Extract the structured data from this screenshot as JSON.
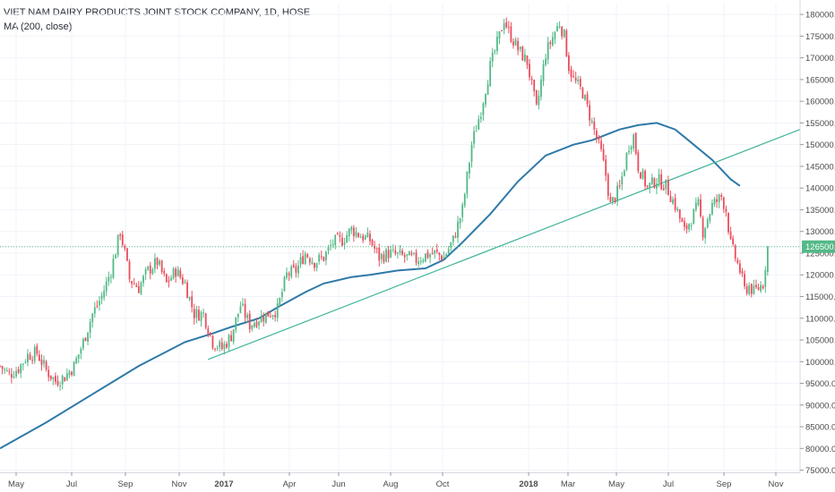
{
  "header": {
    "title": "VIET NAM DAIRY PRODUCTS JOINT STOCK COMPANY, 1D, HOSE",
    "indicator": "MA (200, close)"
  },
  "colors": {
    "up": "#53b987",
    "down": "#eb4d5c",
    "ma": "#2e79a8",
    "trendline": "#3fb39a",
    "grid": "#f0f3fa",
    "axis_text": "#4a4a4a",
    "price_label_bg": "#53b987"
  },
  "chart_data": {
    "type": "candlestick",
    "title": "VIET NAM DAIRY PRODUCTS JOINT STOCK COMPANY, 1D, HOSE",
    "x_ticks": [
      "May",
      "Jul",
      "Sep",
      "Nov",
      "2017",
      "Apr",
      "Jun",
      "Aug",
      "Oct",
      "2018",
      "Mar",
      "May",
      "Jul",
      "Sep",
      "Nov"
    ],
    "y_ticks": [
      "180000.0",
      "175000.0",
      "170000.0",
      "165000.0",
      "160000.0",
      "155000.0",
      "150000.0",
      "145000.0",
      "140000.0",
      "135000.0",
      "130000.0",
      "125000.0",
      "120000.0",
      "115000.0",
      "110000.0",
      "105000.0",
      "100000.0",
      "95000.0",
      "90000.0",
      "85000.0",
      "80000.0",
      "75000.0"
    ],
    "ylim": [
      74500,
      182500
    ],
    "xlim": [
      0,
      173
    ],
    "last_price": 126500,
    "last_price_label": "126500.0",
    "price_points": [
      [
        0,
        99000
      ],
      [
        2,
        97000
      ],
      [
        4,
        98500
      ],
      [
        6,
        101500
      ],
      [
        8,
        102000
      ],
      [
        10,
        98000
      ],
      [
        12,
        95500
      ],
      [
        14,
        96500
      ],
      [
        16,
        99000
      ],
      [
        18,
        104500
      ],
      [
        20,
        111000
      ],
      [
        22,
        115000
      ],
      [
        24,
        121000
      ],
      [
        26,
        130000
      ],
      [
        27,
        125000
      ],
      [
        28,
        119000
      ],
      [
        30,
        117000
      ],
      [
        32,
        121000
      ],
      [
        34,
        123000
      ],
      [
        36,
        118000
      ],
      [
        38,
        121000
      ],
      [
        40,
        118000
      ],
      [
        42,
        111000
      ],
      [
        44,
        111000
      ],
      [
        46,
        104500
      ],
      [
        48,
        103000
      ],
      [
        50,
        106000
      ],
      [
        52,
        113000
      ],
      [
        54,
        108500
      ],
      [
        56,
        110000
      ],
      [
        58,
        111000
      ],
      [
        60,
        112000
      ],
      [
        62,
        120000
      ],
      [
        64,
        121000
      ],
      [
        66,
        125000
      ],
      [
        68,
        123000
      ],
      [
        70,
        124000
      ],
      [
        72,
        127500
      ],
      [
        74,
        128000
      ],
      [
        76,
        130500
      ],
      [
        78,
        129000
      ],
      [
        80,
        128000
      ],
      [
        82,
        124000
      ],
      [
        84,
        125000
      ],
      [
        86,
        124500
      ],
      [
        88,
        124000
      ],
      [
        90,
        123500
      ],
      [
        92,
        124500
      ],
      [
        94,
        125000
      ],
      [
        96,
        124000
      ],
      [
        98,
        128000
      ],
      [
        100,
        135000
      ],
      [
        102,
        150000
      ],
      [
        104,
        158000
      ],
      [
        106,
        168000
      ],
      [
        108,
        175000
      ],
      [
        109,
        179000
      ],
      [
        110,
        176000
      ],
      [
        112,
        172000
      ],
      [
        114,
        169000
      ],
      [
        116,
        158000
      ],
      [
        118,
        171000
      ],
      [
        120,
        176000
      ],
      [
        121,
        178000
      ],
      [
        122,
        175000
      ],
      [
        123,
        168000
      ],
      [
        124,
        165000
      ],
      [
        126,
        162000
      ],
      [
        128,
        155000
      ],
      [
        130,
        148000
      ],
      [
        131,
        143000
      ],
      [
        132,
        136000
      ],
      [
        134,
        140000
      ],
      [
        136,
        150000
      ],
      [
        137,
        152000
      ],
      [
        138,
        145000
      ],
      [
        140,
        140000
      ],
      [
        142,
        142000
      ],
      [
        144,
        140500
      ],
      [
        146,
        136000
      ],
      [
        148,
        130000
      ],
      [
        150,
        134000
      ],
      [
        151,
        136000
      ],
      [
        152,
        130000
      ],
      [
        154,
        136000
      ],
      [
        156,
        138000
      ],
      [
        157,
        135000
      ],
      [
        158,
        127000
      ],
      [
        160,
        121000
      ],
      [
        161,
        116500
      ],
      [
        162,
        117500
      ],
      [
        163,
        116000
      ],
      [
        164,
        117000
      ],
      [
        165,
        118000
      ],
      [
        166,
        126500
      ]
    ],
    "ma200_points": [
      [
        0,
        80000
      ],
      [
        10,
        86000
      ],
      [
        20,
        92500
      ],
      [
        30,
        99000
      ],
      [
        40,
        104500
      ],
      [
        46,
        106500
      ],
      [
        50,
        108000
      ],
      [
        56,
        110000
      ],
      [
        60,
        112500
      ],
      [
        66,
        116000
      ],
      [
        70,
        118000
      ],
      [
        76,
        119500
      ],
      [
        80,
        120000
      ],
      [
        86,
        121000
      ],
      [
        92,
        121500
      ],
      [
        96,
        123500
      ],
      [
        100,
        127500
      ],
      [
        106,
        134000
      ],
      [
        112,
        141500
      ],
      [
        118,
        147500
      ],
      [
        124,
        150000
      ],
      [
        128,
        151000
      ],
      [
        134,
        153500
      ],
      [
        138,
        154500
      ],
      [
        142,
        155000
      ],
      [
        146,
        153500
      ],
      [
        150,
        150000
      ],
      [
        154,
        146500
      ],
      [
        158,
        142000
      ],
      [
        160,
        140500
      ]
    ],
    "trendline": [
      [
        45,
        100500
      ],
      [
        173,
        153500
      ]
    ]
  }
}
